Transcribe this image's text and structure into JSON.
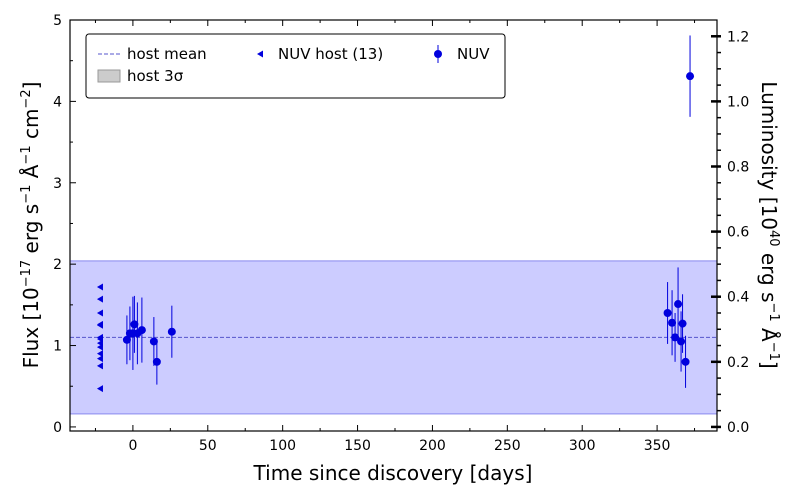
{
  "chart_data": {
    "type": "scatter",
    "xlabel": "Time since discovery [days]",
    "ylabel": "Flux [10",
    "ylabel_sup1": "−17",
    "ylabel_mid": " erg s",
    "ylabel_sup2": "−1",
    "ylabel_mid2": " Å",
    "ylabel_sup3": "−1",
    "ylabel_mid3": " cm",
    "ylabel_sup4": "−2",
    "ylabel_end": "]",
    "y2label": "Luminosity [10",
    "y2label_sup1": "40",
    "y2label_mid": " erg s",
    "y2label_sup2": "−1",
    "y2label_mid2": " Å",
    "y2label_sup3": "−1",
    "y2label_end": "]",
    "xlim": [
      -42,
      390
    ],
    "ylim": [
      -0.05,
      5.0
    ],
    "y2lim": [
      -0.0125,
      1.25
    ],
    "xticks": [
      0,
      50,
      100,
      150,
      200,
      250,
      300,
      350
    ],
    "yticks": [
      0,
      1,
      2,
      3,
      4,
      5
    ],
    "y2ticks": [
      "0.0",
      "0.2",
      "0.4",
      "0.6",
      "0.8",
      "1.0",
      "1.2"
    ],
    "host_mean": 1.1,
    "host_band": [
      0.16,
      2.04
    ],
    "legend": {
      "placement": "top-left",
      "items": [
        {
          "label": "host mean",
          "marker": "dashed-line"
        },
        {
          "label": "NUV host (13)",
          "marker": "left-triangle"
        },
        {
          "label": "NUV",
          "marker": "errorbar-point"
        },
        {
          "label": "host 3σ",
          "marker": "band"
        }
      ]
    },
    "colors": {
      "points": "#0000dd",
      "band": "#ccccff",
      "band_edge": "#8888ee",
      "mean": "#5555cc"
    },
    "series": [
      {
        "type": "host-upper-limits",
        "x": [
          -22,
          -22,
          -22,
          -22,
          -22,
          -22,
          -22,
          -22,
          -22,
          -22,
          -22,
          -22,
          -22
        ],
        "y": [
          0.47,
          0.75,
          0.84,
          0.98,
          1.03,
          1.08,
          1.25,
          1.26,
          1.4,
          1.57,
          1.72,
          1.1,
          0.9
        ]
      },
      {
        "type": "nuv-detections",
        "x": [
          -4,
          -2,
          0,
          1,
          3,
          6,
          14,
          16,
          26,
          357,
          360,
          362,
          364,
          366,
          367,
          369,
          372
        ],
        "y": [
          1.07,
          1.15,
          1.15,
          1.26,
          1.15,
          1.19,
          1.05,
          0.8,
          1.17,
          1.4,
          1.28,
          1.1,
          1.51,
          1.05,
          1.27,
          0.8,
          4.31
        ],
        "yerr": [
          0.3,
          0.33,
          0.45,
          0.35,
          0.38,
          0.4,
          0.3,
          0.28,
          0.32,
          0.38,
          0.4,
          0.3,
          0.45,
          0.37,
          0.36,
          0.32,
          0.5
        ]
      }
    ]
  }
}
